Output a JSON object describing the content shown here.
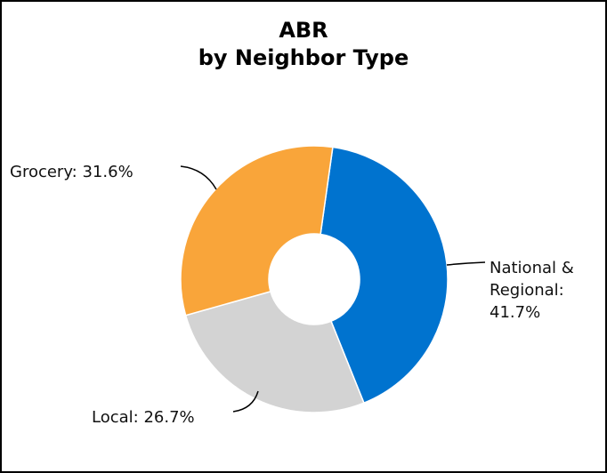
{
  "chart_data": {
    "type": "pie",
    "title": [
      "ABR",
      "by Neighbor Type"
    ],
    "categories": [
      "National & Regional:",
      "Local:",
      "Grocery:"
    ],
    "values": [
      41.7,
      26.7,
      31.6
    ],
    "value_labels": [
      "41.7%",
      "26.7%",
      "31.6%"
    ],
    "colors": [
      "#0073cf",
      "#d3d3d3",
      "#f9a53a"
    ],
    "donut": true
  }
}
